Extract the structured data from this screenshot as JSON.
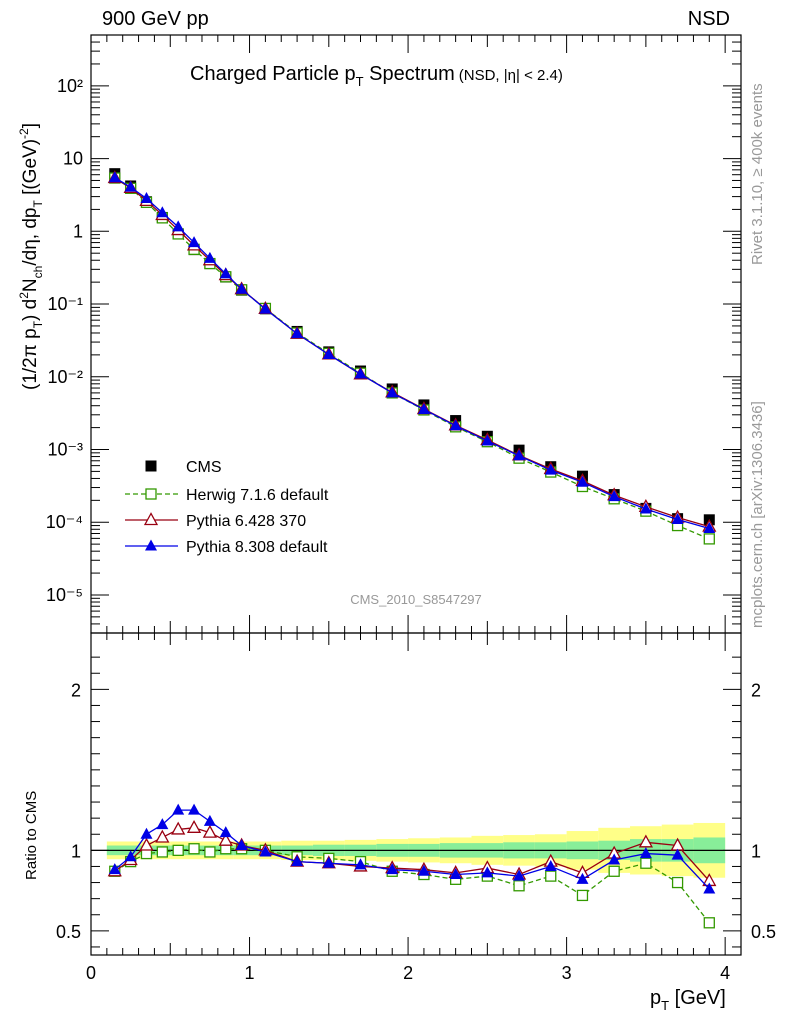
{
  "header": {
    "left": "900 GeV pp",
    "right": "NSD"
  },
  "title": {
    "main": "Charged Particle p",
    "sub": "T",
    "rest": " Spectrum",
    "cond": "(NSD, |η| < 2.4)"
  },
  "ylabel_top": "(1/2π p_T) d²N_ch/dη, dp_T [(GeV)⁻²]",
  "ylabel_bottom": "Ratio to CMS",
  "xlabel": "p_T [GeV]",
  "side_top": "Rivet 3.1.10, ≥ 400k events",
  "side_bottom": "mcplots.cern.ch [arXiv:1306.3436]",
  "analysis_id": "CMS_2010_S8547297",
  "colors": {
    "cms": "#000000",
    "herwig": "#339900",
    "pythia6": "#990011",
    "pythia8": "#0000e6",
    "band_inner": "#88ee99",
    "band_outer": "#ffff88"
  },
  "chart_data": [
    {
      "type": "scatter",
      "log_y": true,
      "xlim": [
        0,
        4.1
      ],
      "ylim": [
        3e-06,
        500
      ],
      "y_ticks": [
        "10⁻⁵",
        "10⁻⁴",
        "10⁻³",
        "10⁻²",
        "10⁻¹",
        "1",
        "10",
        "10²"
      ],
      "x_ticks": [
        "0",
        "1",
        "2",
        "3",
        "4"
      ],
      "x": [
        0.15,
        0.25,
        0.35,
        0.45,
        0.55,
        0.65,
        0.75,
        0.85,
        0.95,
        1.1,
        1.3,
        1.5,
        1.7,
        1.9,
        2.1,
        2.3,
        2.5,
        2.7,
        2.9,
        3.1,
        3.3,
        3.5,
        3.7,
        3.9
      ],
      "legend_position": "bottom-left",
      "series": [
        {
          "name": "CMS",
          "marker": "filled-square",
          "values": [
            6.2,
            4.2,
            2.55,
            1.55,
            0.92,
            0.56,
            0.36,
            0.235,
            0.155,
            0.086,
            0.042,
            0.022,
            0.012,
            0.0068,
            0.0041,
            0.0025,
            0.00152,
            0.00098,
            0.00058,
            0.00043,
            0.00024,
            0.000155,
            0.000112,
            0.000108
          ]
        },
        {
          "name": "Herwig 7.1.6 default",
          "marker": "open-square",
          "line": "dashed",
          "values": [
            5.4,
            3.9,
            2.5,
            1.53,
            0.92,
            0.565,
            0.36,
            0.237,
            0.157,
            0.087,
            0.04,
            0.021,
            0.0112,
            0.006,
            0.0035,
            0.00205,
            0.00128,
            0.00076,
            0.00049,
            0.00031,
            0.00021,
            0.000142,
            9e-05,
            5.9e-05
          ]
        },
        {
          "name": "Pythia 6.428 370",
          "marker": "open-triangle",
          "line": "solid",
          "values": [
            5.4,
            3.95,
            2.62,
            1.68,
            1.04,
            0.64,
            0.4,
            0.25,
            0.16,
            0.086,
            0.039,
            0.0203,
            0.0108,
            0.0061,
            0.0036,
            0.00215,
            0.00135,
            0.00083,
            0.00054,
            0.00037,
            0.000235,
            0.000163,
            0.000116,
            8.7e-05
          ]
        },
        {
          "name": "Pythia 8.308 default",
          "marker": "filled-triangle",
          "line": "solid",
          "values": [
            5.45,
            4.05,
            2.82,
            1.8,
            1.15,
            0.7,
            0.425,
            0.26,
            0.16,
            0.085,
            0.0392,
            0.0202,
            0.0109,
            0.006,
            0.00355,
            0.00212,
            0.00131,
            0.00082,
            0.00052,
            0.000355,
            0.000225,
            0.000152,
            0.000109,
            8.2e-05
          ]
        }
      ]
    },
    {
      "type": "scatter",
      "xlim": [
        0,
        4.1
      ],
      "ylim": [
        0.35,
        2.35
      ],
      "y_ticks": [
        "0.5",
        "1",
        "2"
      ],
      "x_ticks": [
        "0",
        "1",
        "2",
        "3",
        "4"
      ],
      "x": [
        0.15,
        0.25,
        0.35,
        0.45,
        0.55,
        0.65,
        0.75,
        0.85,
        0.95,
        1.1,
        1.3,
        1.5,
        1.7,
        1.9,
        2.1,
        2.3,
        2.5,
        2.7,
        2.9,
        3.1,
        3.3,
        3.5,
        3.7,
        3.9
      ],
      "band": {
        "x_edges": [
          0.1,
          0.3,
          0.5,
          0.7,
          0.9,
          1.0,
          1.2,
          1.4,
          1.6,
          1.8,
          2.0,
          2.2,
          2.4,
          2.6,
          2.8,
          3.0,
          3.2,
          3.4,
          3.6,
          3.8,
          4.0
        ],
        "inner": [
          0.03,
          0.03,
          0.03,
          0.03,
          0.03,
          0.03,
          0.03,
          0.035,
          0.035,
          0.04,
          0.04,
          0.045,
          0.045,
          0.05,
          0.05,
          0.055,
          0.06,
          0.07,
          0.07,
          0.08
        ],
        "outer": [
          0.055,
          0.055,
          0.055,
          0.055,
          0.055,
          0.055,
          0.06,
          0.06,
          0.065,
          0.07,
          0.075,
          0.08,
          0.09,
          0.095,
          0.1,
          0.12,
          0.14,
          0.15,
          0.16,
          0.17
        ]
      },
      "series": [
        {
          "name": "Herwig 7.1.6 default",
          "values": [
            0.87,
            0.93,
            0.98,
            0.99,
            1.0,
            1.01,
            0.99,
            1.01,
            1.01,
            1.0,
            0.96,
            0.95,
            0.93,
            0.87,
            0.85,
            0.82,
            0.84,
            0.78,
            0.84,
            0.72,
            0.87,
            0.92,
            0.8,
            0.55
          ],
          "errors": [
            0.008,
            0.008,
            0.008,
            0.008,
            0.008,
            0.008,
            0.008,
            0.008,
            0.008,
            0.008,
            0.01,
            0.01,
            0.01,
            0.01,
            0.01,
            0.01,
            0.012,
            0.012,
            0.015,
            0.015,
            0.015,
            0.02,
            0.02,
            0.025
          ]
        },
        {
          "name": "Pythia 6.428 370",
          "values": [
            0.87,
            0.94,
            1.03,
            1.08,
            1.13,
            1.14,
            1.11,
            1.06,
            1.03,
            1.0,
            0.93,
            0.92,
            0.9,
            0.89,
            0.88,
            0.86,
            0.89,
            0.85,
            0.93,
            0.86,
            0.98,
            1.05,
            1.03,
            0.81
          ]
        },
        {
          "name": "Pythia 8.308 default",
          "values": [
            0.88,
            0.96,
            1.1,
            1.16,
            1.25,
            1.25,
            1.18,
            1.11,
            1.03,
            0.99,
            0.93,
            0.92,
            0.91,
            0.88,
            0.87,
            0.85,
            0.86,
            0.84,
            0.9,
            0.82,
            0.94,
            0.98,
            0.97,
            0.76
          ]
        }
      ]
    }
  ]
}
